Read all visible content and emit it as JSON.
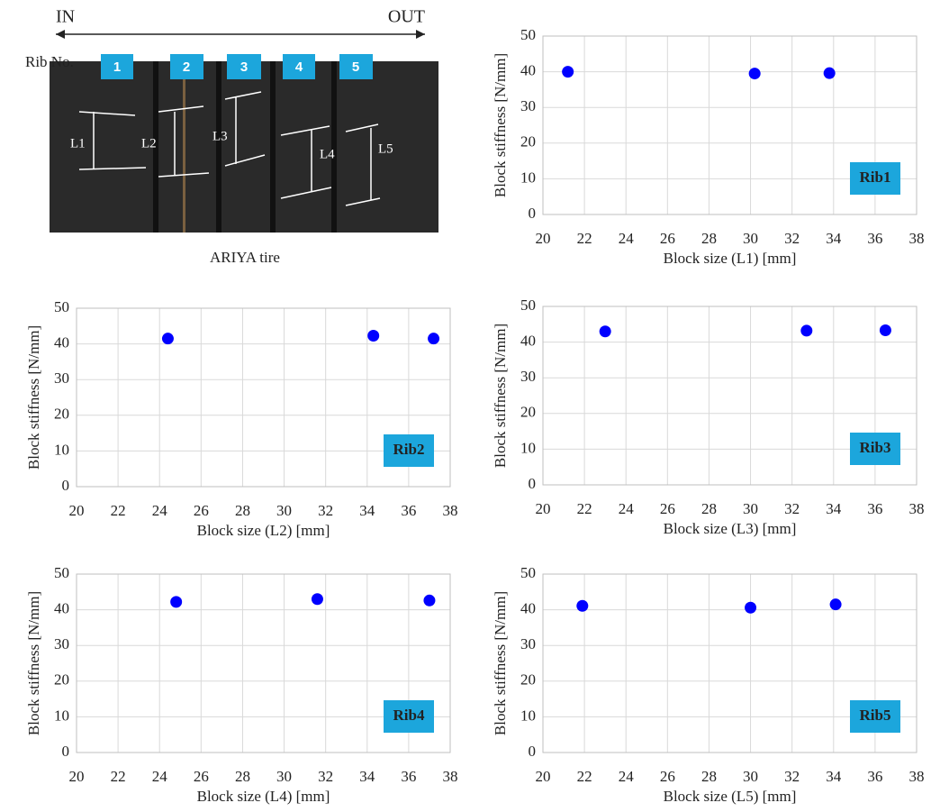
{
  "figure": {
    "direction_in": "IN",
    "direction_out": "OUT",
    "rib_label": "Rib No.",
    "ribs": [
      "1",
      "2",
      "3",
      "4",
      "5"
    ],
    "lengths": [
      "L1",
      "L2",
      "L3",
      "L4",
      "L5"
    ],
    "caption": "ARIYA tire"
  },
  "chart_data": [
    {
      "type": "scatter",
      "xlabel": "Block size (L1) [mm]",
      "ylabel": "Block stiffness [N/mm]",
      "annotation": "Rib1",
      "x": [
        21.2,
        30.2,
        33.8
      ],
      "values": [
        40,
        39.5,
        39.6
      ],
      "color": "#0000ff",
      "annotation_color": "#1ca6dc",
      "xlim": [
        20,
        38
      ],
      "ylim": [
        0,
        50
      ],
      "xticks": [
        20,
        22,
        24,
        26,
        28,
        30,
        32,
        34,
        36,
        38
      ],
      "yticks": [
        0,
        10,
        20,
        30,
        40,
        50
      ],
      "grid": true
    },
    {
      "type": "scatter",
      "xlabel": "Block size (L2) [mm]",
      "ylabel": "Block stiffness [N/mm]",
      "annotation": "Rib2",
      "x": [
        24.4,
        34.3,
        37.2
      ],
      "values": [
        41.5,
        42.3,
        41.5
      ],
      "color": "#0000ff",
      "annotation_color": "#1ca6dc",
      "xlim": [
        20,
        38
      ],
      "ylim": [
        0,
        50
      ],
      "xticks": [
        20,
        22,
        24,
        26,
        28,
        30,
        32,
        34,
        36,
        38
      ],
      "yticks": [
        0,
        10,
        20,
        30,
        40,
        50
      ],
      "grid": true
    },
    {
      "type": "scatter",
      "xlabel": "Block size (L3) [mm]",
      "ylabel": "Block stiffness [N/mm]",
      "annotation": "Rib3",
      "x": [
        23.0,
        32.7,
        36.5
      ],
      "values": [
        43.0,
        43.2,
        43.3
      ],
      "color": "#0000ff",
      "annotation_color": "#1ca6dc",
      "xlim": [
        20,
        38
      ],
      "ylim": [
        0,
        50
      ],
      "xticks": [
        20,
        22,
        24,
        26,
        28,
        30,
        32,
        34,
        36,
        38
      ],
      "yticks": [
        0,
        10,
        20,
        30,
        40,
        50
      ],
      "grid": true
    },
    {
      "type": "scatter",
      "xlabel": "Block size (L4) [mm]",
      "ylabel": "Block stiffness [N/mm]",
      "annotation": "Rib4",
      "x": [
        24.8,
        31.6,
        37.0
      ],
      "values": [
        42.2,
        43.0,
        42.6
      ],
      "color": "#0000ff",
      "annotation_color": "#1ca6dc",
      "xlim": [
        20,
        38
      ],
      "ylim": [
        0,
        50
      ],
      "xticks": [
        20,
        22,
        24,
        26,
        28,
        30,
        32,
        34,
        36,
        38
      ],
      "yticks": [
        0,
        10,
        20,
        30,
        40,
        50
      ],
      "grid": true
    },
    {
      "type": "scatter",
      "xlabel": "Block size (L5) [mm]",
      "ylabel": "Block stiffness [N/mm]",
      "annotation": "Rib5",
      "x": [
        21.9,
        30.0,
        34.1
      ],
      "values": [
        41.1,
        40.6,
        41.5
      ],
      "color": "#0000ff",
      "annotation_color": "#1ca6dc",
      "xlim": [
        20,
        38
      ],
      "ylim": [
        0,
        50
      ],
      "xticks": [
        20,
        22,
        24,
        26,
        28,
        30,
        32,
        34,
        36,
        38
      ],
      "yticks": [
        0,
        10,
        20,
        30,
        40,
        50
      ],
      "grid": true
    }
  ]
}
